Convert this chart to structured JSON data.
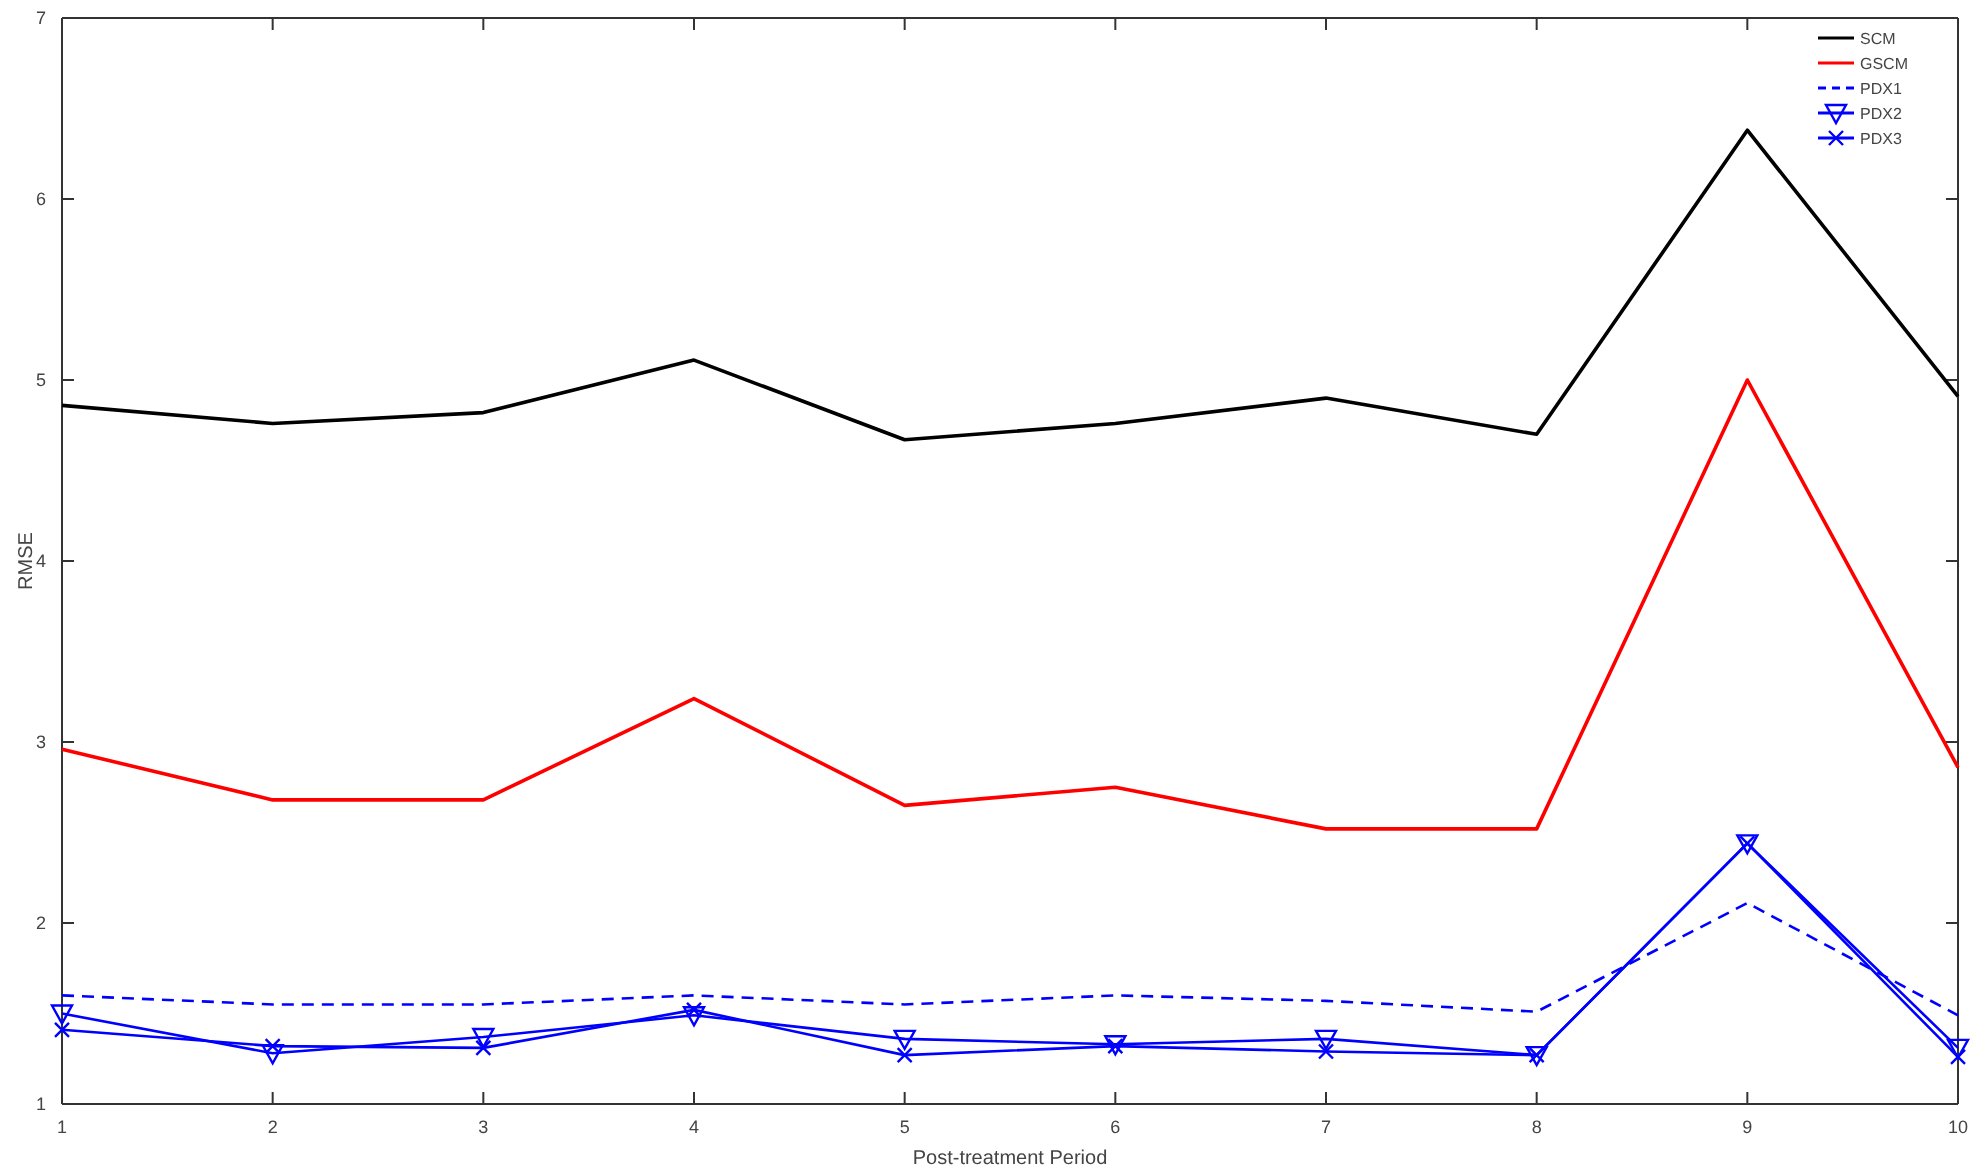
{
  "chart_data": {
    "type": "line",
    "xlabel": "Post-treatment Period",
    "ylabel": "RMSE",
    "x": [
      1,
      2,
      3,
      4,
      5,
      6,
      7,
      8,
      9,
      10
    ],
    "xlim": [
      1,
      10
    ],
    "xticks": [
      1,
      2,
      3,
      4,
      5,
      6,
      7,
      8,
      9,
      10
    ],
    "ylim": [
      1,
      7
    ],
    "yticks": [
      1,
      2,
      3,
      4,
      5,
      6,
      7
    ],
    "grid": false,
    "legend": "top right",
    "series": [
      {
        "name": "SCM",
        "color": "#000000",
        "line_style": "solid",
        "marker": "none",
        "values": [
          4.86,
          4.76,
          4.82,
          5.11,
          4.67,
          4.76,
          4.9,
          4.7,
          6.38,
          4.91
        ]
      },
      {
        "name": "GSCM",
        "color": "#ff0000",
        "line_style": "solid",
        "marker": "none",
        "values": [
          2.96,
          2.68,
          2.68,
          3.24,
          2.65,
          2.75,
          2.52,
          2.52,
          5.0,
          2.86
        ]
      },
      {
        "name": "PDX1",
        "color": "#0000ff",
        "line_style": "dashed",
        "marker": "none",
        "values": [
          1.6,
          1.55,
          1.55,
          1.6,
          1.55,
          1.6,
          1.57,
          1.51,
          2.11,
          1.49
        ]
      },
      {
        "name": "PDX2",
        "color": "#0000ff",
        "line_style": "solid",
        "marker": "triangle",
        "values": [
          1.5,
          1.28,
          1.37,
          1.49,
          1.36,
          1.33,
          1.36,
          1.27,
          2.44,
          1.31
        ]
      },
      {
        "name": "PDX3",
        "color": "#0000ff",
        "line_style": "solid",
        "marker": "cross",
        "values": [
          1.41,
          1.32,
          1.31,
          1.52,
          1.27,
          1.32,
          1.29,
          1.27,
          2.44,
          1.26
        ]
      }
    ]
  }
}
